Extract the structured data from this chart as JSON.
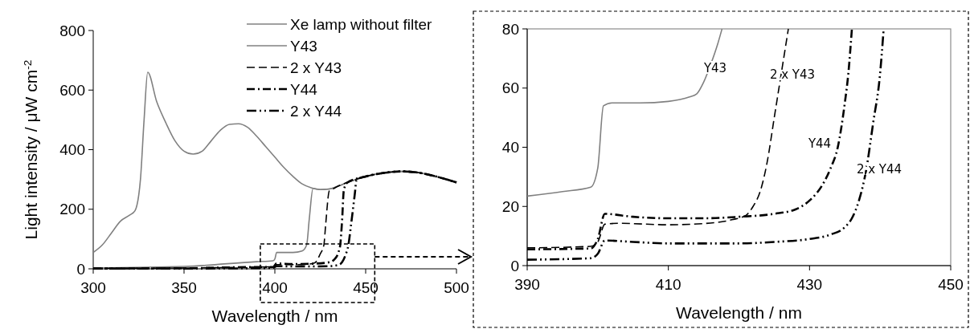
{
  "chart_data": [
    {
      "type": "line",
      "xlabel": "Wavelength / nm",
      "ylabel": "Light intensity / μW cm$^{-2}$",
      "xlim": [
        300,
        500
      ],
      "ylim": [
        0,
        800
      ],
      "xticks": [
        300,
        350,
        400,
        450,
        500
      ],
      "yticks": [
        0,
        200,
        400,
        600,
        800
      ],
      "grid": false,
      "legend": "top right",
      "marker": "none",
      "series": [
        {
          "name": "Xe lamp without filter",
          "color": "#808080",
          "line_style": "solid",
          "x": [
            300,
            305,
            310,
            315,
            320,
            323,
            326,
            328,
            330,
            335,
            340,
            345,
            350,
            355,
            360,
            365,
            370,
            375,
            380,
            385,
            390,
            395,
            400,
            405,
            410,
            415,
            420,
            425,
            430,
            435,
            440,
            450,
            460,
            470,
            480,
            490,
            500
          ],
          "values": [
            55,
            80,
            120,
            160,
            180,
            195,
            300,
            500,
            660,
            560,
            490,
            430,
            395,
            385,
            395,
            430,
            465,
            485,
            487,
            475,
            445,
            410,
            375,
            340,
            310,
            285,
            272,
            266,
            268,
            278,
            290,
            310,
            322,
            327,
            322,
            308,
            290
          ]
        },
        {
          "name": "Y43",
          "color": "#808080",
          "line_style": "solid",
          "x": [
            300,
            350,
            390,
            399,
            400,
            401,
            410,
            415,
            417.5,
            419,
            421,
            425,
            430,
            435,
            440,
            450,
            460,
            470,
            480,
            490,
            500
          ],
          "values": [
            3,
            8,
            24,
            27,
            33,
            55,
            55,
            60,
            80,
            170,
            270,
            266,
            268,
            278,
            290,
            310,
            322,
            327,
            322,
            308,
            290
          ]
        },
        {
          "name": "2 x Y43",
          "color": "#000000",
          "line_style": "dashed",
          "x": [
            300,
            350,
            390,
            399,
            401,
            410,
            419,
            422,
            425,
            427,
            428,
            430,
            432,
            435,
            440,
            450,
            460,
            470,
            480,
            490,
            500
          ],
          "values": [
            2,
            3,
            6,
            7,
            14,
            14,
            16,
            20,
            50,
            80,
            150,
            262,
            268,
            278,
            290,
            310,
            322,
            327,
            322,
            308,
            290
          ]
        },
        {
          "name": "Y44",
          "color": "#000000",
          "line_style": "dashdot",
          "x": [
            300,
            350,
            390,
            399,
            401,
            410,
            420,
            430,
            433,
            435,
            436,
            437,
            438,
            440,
            450,
            460,
            470,
            480,
            490,
            500
          ],
          "values": [
            1,
            2,
            6,
            6,
            18,
            16,
            17,
            22,
            33,
            55,
            80,
            160,
            265,
            290,
            310,
            322,
            327,
            322,
            308,
            290
          ]
        },
        {
          "name": "2 x Y44",
          "color": "#000000",
          "line_style": "dashdotdot",
          "x": [
            300,
            350,
            390,
            399,
            401,
            410,
            420,
            430,
            435,
            437,
            439,
            440.5,
            442,
            444,
            445,
            450,
            460,
            470,
            480,
            490,
            500
          ],
          "values": [
            1,
            1,
            2,
            3,
            9,
            8,
            8,
            9,
            13,
            22,
            48,
            80,
            150,
            250,
            300,
            310,
            322,
            327,
            322,
            308,
            290
          ]
        }
      ]
    },
    {
      "type": "line",
      "xlabel": "Wavelength / nm",
      "xlim": [
        390,
        450
      ],
      "ylim": [
        0,
        80
      ],
      "xticks": [
        390,
        410,
        430,
        450
      ],
      "yticks": [
        0,
        20,
        40,
        60,
        80
      ],
      "grid": false,
      "legend": false,
      "marker": "none",
      "annotations": [
        "Y43",
        "2 x Y43",
        "Y44",
        "2 x Y44"
      ],
      "series": [
        {
          "color": "#808080",
          "line_style": "solid",
          "x": [
            390,
            395,
            399,
            400,
            400.8,
            402,
            406,
            410,
            413,
            414,
            415,
            416,
            417,
            417.6
          ],
          "values": [
            23.5,
            25,
            26.5,
            33,
            54,
            55,
            55,
            55.5,
            57,
            58,
            62,
            68,
            75,
            80
          ]
        },
        {
          "color": "#000000",
          "line_style": "dashed",
          "x": [
            390,
            399,
            400,
            401,
            403,
            410,
            415,
            419,
            421,
            422,
            423,
            424,
            425,
            426,
            427
          ],
          "values": [
            6,
            6.5,
            8,
            14,
            14.3,
            13.8,
            14.2,
            15.5,
            17,
            20,
            25,
            35,
            50,
            65,
            80
          ]
        },
        {
          "color": "#000000",
          "line_style": "dashdot",
          "x": [
            390,
            399,
            400,
            401,
            405,
            410,
            415,
            420,
            425,
            428,
            430,
            432,
            433,
            434,
            435,
            435.5,
            436
          ],
          "values": [
            5.5,
            5.8,
            9,
            17.5,
            16.5,
            16,
            16,
            16.5,
            17.5,
            19,
            22,
            28,
            33,
            40,
            55,
            65,
            80
          ]
        },
        {
          "color": "#000000",
          "line_style": "dashdotdot",
          "x": [
            390,
            399,
            400,
            401,
            405,
            410,
            420,
            425,
            430,
            433,
            435,
            436,
            437,
            438,
            439,
            440,
            440.5
          ],
          "values": [
            2,
            2.5,
            4,
            8.5,
            8,
            7.5,
            7.5,
            8,
            9,
            10.5,
            13,
            16,
            22,
            32,
            48,
            65,
            80
          ]
        }
      ]
    }
  ]
}
